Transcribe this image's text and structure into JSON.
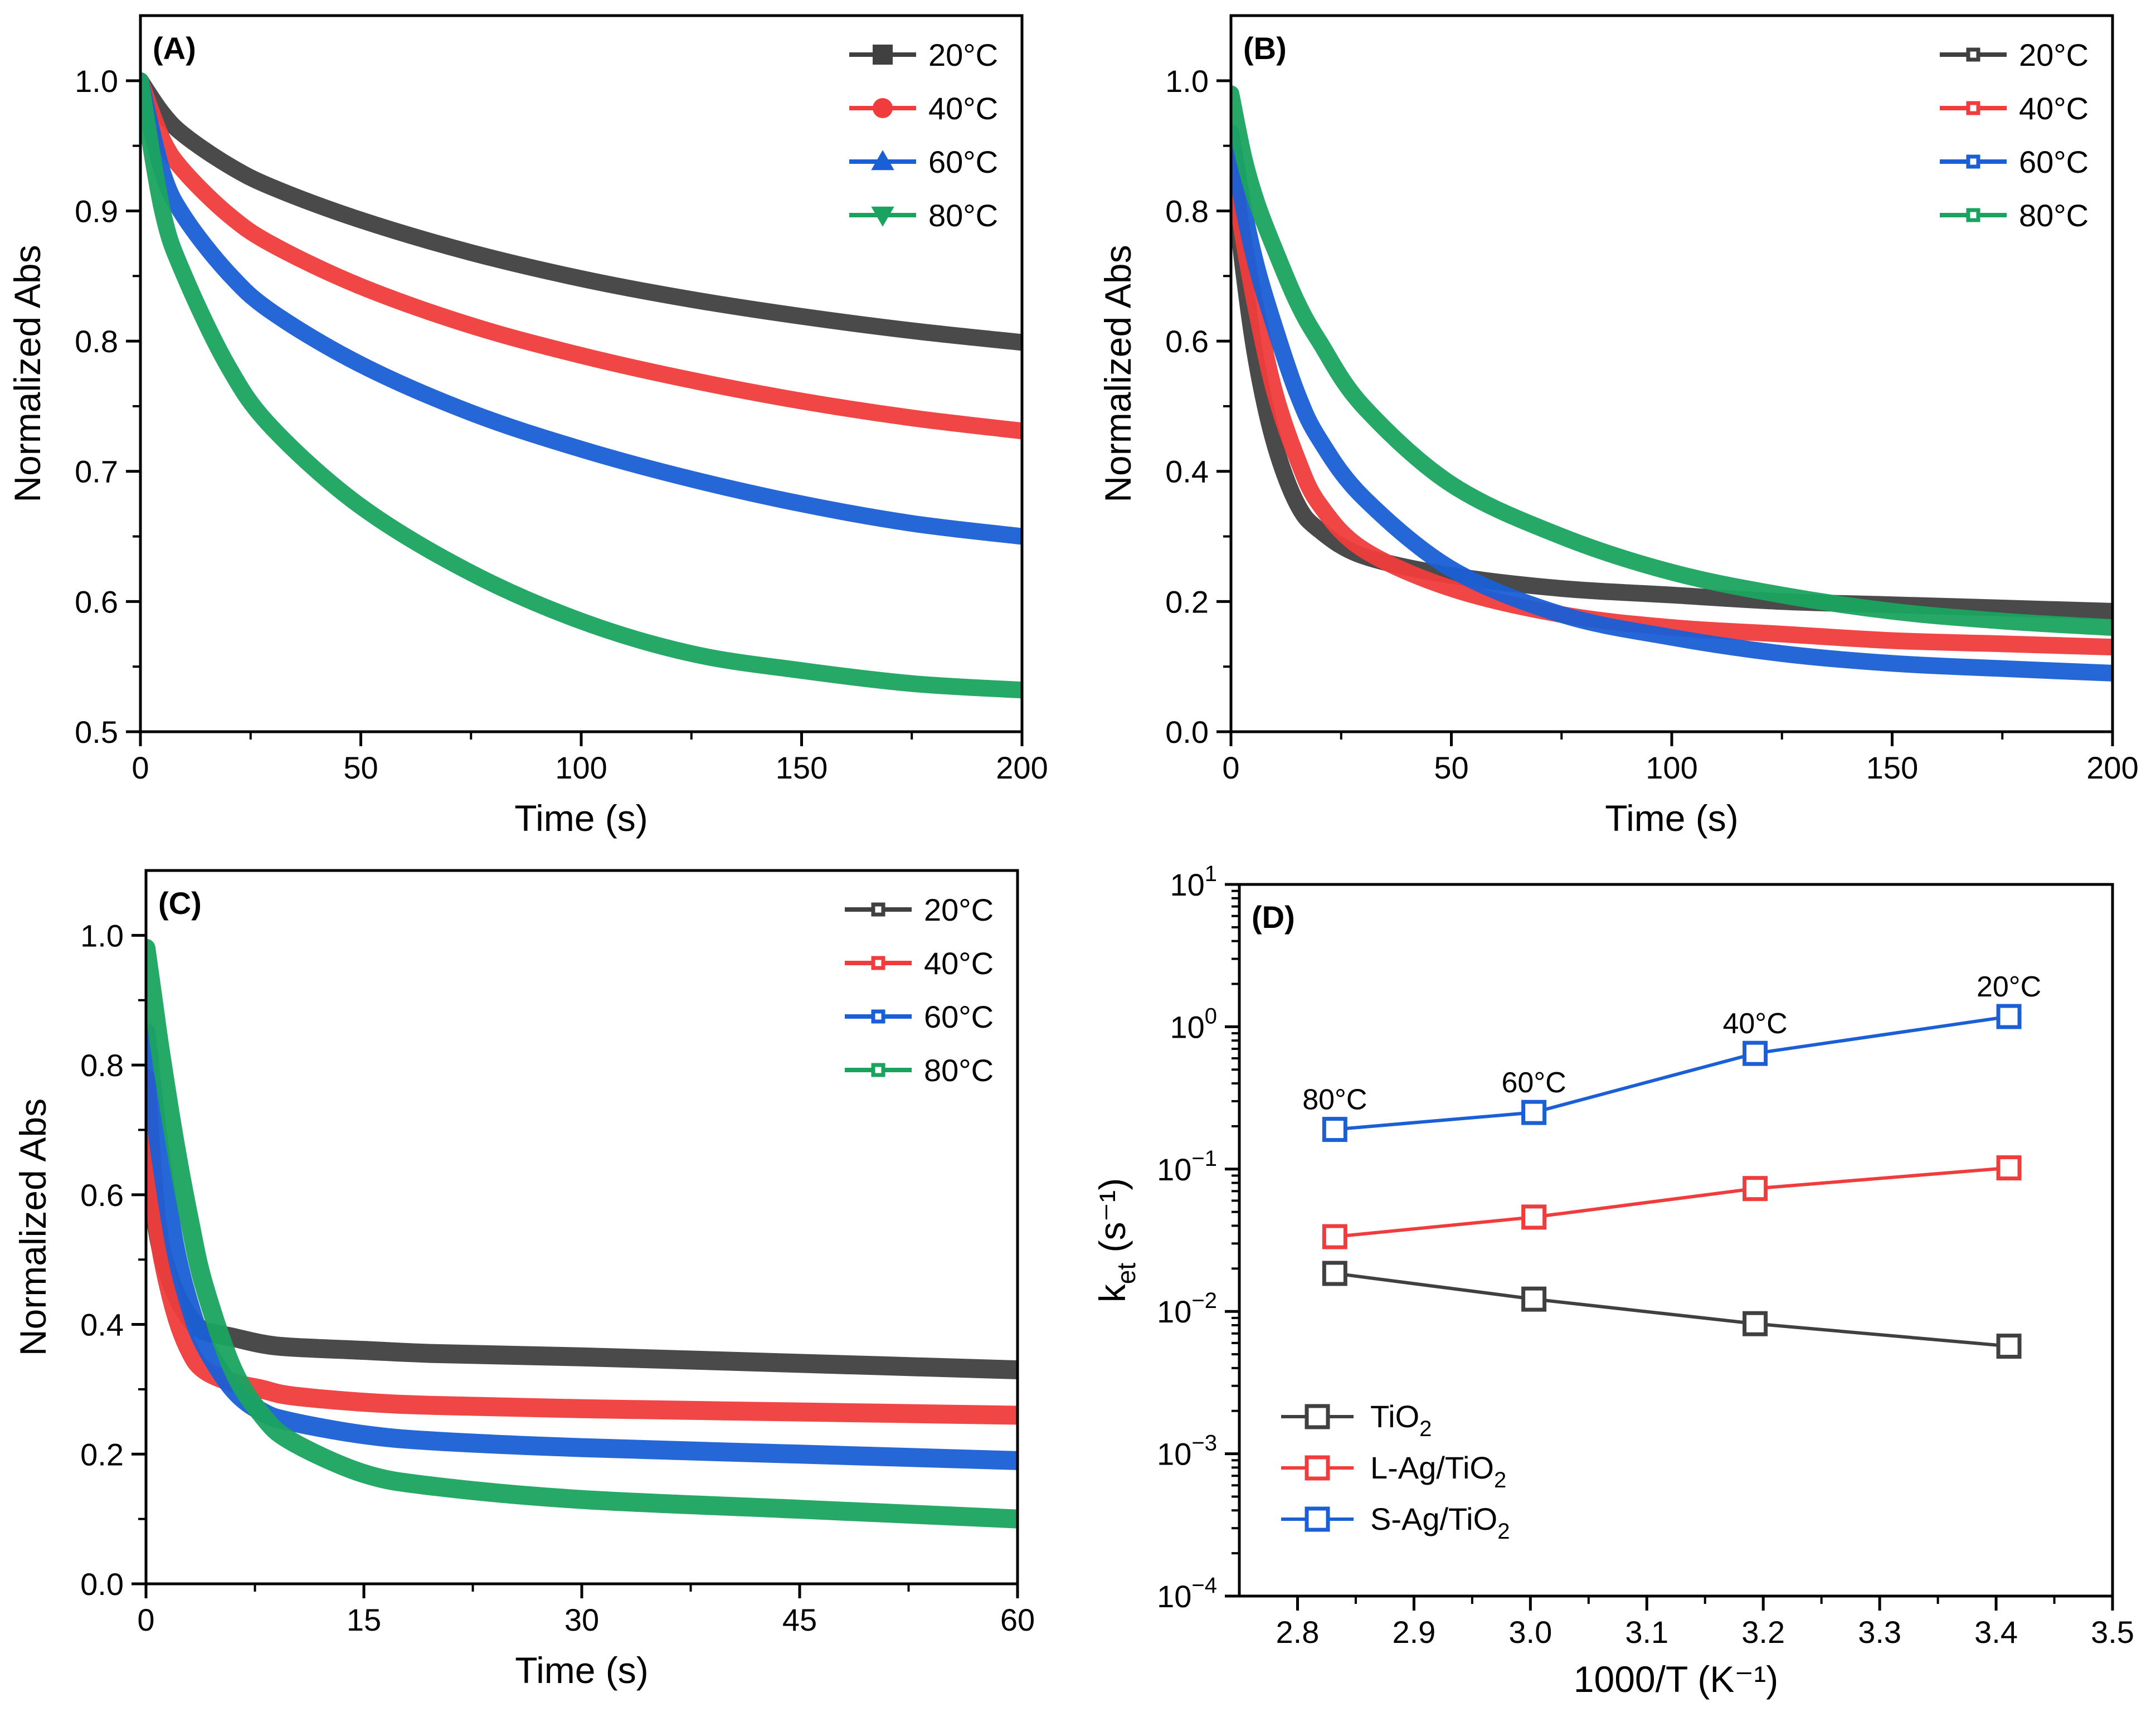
{
  "chart_data": [
    {
      "id": "A",
      "type": "line",
      "panel_label": "(A)",
      "xlabel": "Time (s)",
      "ylabel": "Normalized Abs",
      "xlim": [
        0,
        200
      ],
      "ylim": [
        0.5,
        1.05
      ],
      "x_ticks": [
        0,
        50,
        100,
        150,
        200
      ],
      "y_ticks": [
        0.5,
        0.6,
        0.7,
        0.8,
        0.9,
        1.0
      ],
      "x_tick_labels": [
        "0",
        "50",
        "100",
        "150",
        "200"
      ],
      "y_tick_labels": [
        "0.5",
        "0.6",
        "0.7",
        "0.8",
        "0.9",
        "1.0"
      ],
      "legend_position": "top-right",
      "legend_marker": "filled",
      "series": [
        {
          "name": "20°C",
          "color": "#404040",
          "marker": "square",
          "x": [
            0,
            5,
            10,
            20,
            30,
            50,
            75,
            100,
            125,
            150,
            175,
            200
          ],
          "values": [
            1.0,
            0.975,
            0.958,
            0.935,
            0.918,
            0.893,
            0.868,
            0.848,
            0.832,
            0.819,
            0.808,
            0.799
          ]
        },
        {
          "name": "40°C",
          "color": "#f03c3c",
          "marker": "circle",
          "x": [
            0,
            5,
            10,
            20,
            30,
            50,
            75,
            100,
            125,
            150,
            175,
            200
          ],
          "values": [
            1.0,
            0.955,
            0.93,
            0.897,
            0.874,
            0.842,
            0.812,
            0.789,
            0.77,
            0.754,
            0.741,
            0.731
          ]
        },
        {
          "name": "60°C",
          "color": "#1a5fd6",
          "marker": "triangle-up",
          "x": [
            0,
            5,
            10,
            20,
            30,
            50,
            75,
            100,
            125,
            150,
            175,
            200
          ],
          "values": [
            1.0,
            0.93,
            0.895,
            0.852,
            0.822,
            0.782,
            0.745,
            0.717,
            0.694,
            0.675,
            0.66,
            0.65
          ]
        },
        {
          "name": "80°C",
          "color": "#1aa35f",
          "marker": "triangle-down",
          "x": [
            0,
            5,
            10,
            20,
            30,
            50,
            75,
            100,
            125,
            150,
            175,
            200
          ],
          "values": [
            1.0,
            0.9,
            0.85,
            0.78,
            0.733,
            0.673,
            0.622,
            0.585,
            0.56,
            0.547,
            0.537,
            0.532
          ]
        }
      ]
    },
    {
      "id": "B",
      "type": "line",
      "panel_label": "(B)",
      "xlabel": "Time (s)",
      "ylabel": "Normalized Abs",
      "xlim": [
        0,
        200
      ],
      "ylim": [
        0.0,
        1.1
      ],
      "x_ticks": [
        0,
        50,
        100,
        150,
        200
      ],
      "y_ticks": [
        0.0,
        0.2,
        0.4,
        0.6,
        0.8,
        1.0
      ],
      "x_tick_labels": [
        "0",
        "50",
        "100",
        "150",
        "200"
      ],
      "y_tick_labels": [
        "0.0",
        "0.2",
        "0.4",
        "0.6",
        "0.8",
        "1.0"
      ],
      "legend_position": "top-right",
      "legend_marker": "open-square",
      "series": [
        {
          "name": "20°C",
          "color": "#404040",
          "x": [
            0,
            3,
            6,
            10,
            15,
            20,
            30,
            50,
            75,
            100,
            125,
            150,
            175,
            200
          ],
          "values": [
            0.88,
            0.7,
            0.56,
            0.44,
            0.35,
            0.31,
            0.27,
            0.24,
            0.22,
            0.21,
            0.2,
            0.195,
            0.19,
            0.185
          ]
        },
        {
          "name": "40°C",
          "color": "#f03c3c",
          "x": [
            0,
            3,
            6,
            10,
            15,
            20,
            30,
            50,
            75,
            100,
            125,
            150,
            175,
            200
          ],
          "values": [
            0.88,
            0.75,
            0.64,
            0.52,
            0.42,
            0.35,
            0.28,
            0.22,
            0.18,
            0.16,
            0.15,
            0.14,
            0.135,
            0.13
          ]
        },
        {
          "name": "60°C",
          "color": "#1a5fd6",
          "x": [
            0,
            3,
            6,
            10,
            15,
            20,
            30,
            50,
            75,
            100,
            125,
            150,
            175,
            200
          ],
          "values": [
            0.92,
            0.8,
            0.71,
            0.62,
            0.52,
            0.45,
            0.36,
            0.25,
            0.18,
            0.145,
            0.12,
            0.105,
            0.097,
            0.09
          ]
        },
        {
          "name": "80°C",
          "color": "#1aa35f",
          "x": [
            0,
            3,
            6,
            10,
            15,
            20,
            30,
            50,
            75,
            100,
            125,
            150,
            175,
            200
          ],
          "values": [
            0.98,
            0.88,
            0.81,
            0.74,
            0.66,
            0.6,
            0.5,
            0.38,
            0.3,
            0.245,
            0.21,
            0.185,
            0.17,
            0.16
          ]
        }
      ]
    },
    {
      "id": "C",
      "type": "line",
      "panel_label": "(C)",
      "xlabel": "Time (s)",
      "ylabel": "Normalized Abs",
      "xlim": [
        0,
        60
      ],
      "ylim": [
        0.0,
        1.1
      ],
      "x_ticks": [
        0,
        15,
        30,
        45,
        60
      ],
      "y_ticks": [
        0.0,
        0.2,
        0.4,
        0.6,
        0.8,
        1.0
      ],
      "x_tick_labels": [
        "0",
        "15",
        "30",
        "45",
        "60"
      ],
      "y_tick_labels": [
        "0.0",
        "0.2",
        "0.4",
        "0.6",
        "0.8",
        "1.0"
      ],
      "legend_position": "top-right",
      "legend_marker": "open-square",
      "series": [
        {
          "name": "20°C",
          "color": "#404040",
          "x": [
            0,
            0.5,
            1,
            2,
            3,
            4,
            6,
            8,
            10,
            15,
            20,
            30,
            45,
            60
          ],
          "values": [
            0.75,
            0.6,
            0.52,
            0.45,
            0.41,
            0.39,
            0.38,
            0.37,
            0.365,
            0.36,
            0.355,
            0.35,
            0.34,
            0.33
          ]
        },
        {
          "name": "40°C",
          "color": "#f03c3c",
          "x": [
            0,
            0.5,
            1,
            2,
            3,
            4,
            6,
            8,
            10,
            15,
            20,
            30,
            45,
            60
          ],
          "values": [
            0.78,
            0.62,
            0.52,
            0.42,
            0.36,
            0.33,
            0.31,
            0.3,
            0.29,
            0.28,
            0.275,
            0.27,
            0.265,
            0.26
          ]
        },
        {
          "name": "60°C",
          "color": "#1a5fd6",
          "x": [
            0,
            0.5,
            1,
            2,
            3,
            4,
            6,
            8,
            10,
            15,
            20,
            30,
            45,
            60
          ],
          "values": [
            0.85,
            0.75,
            0.66,
            0.52,
            0.43,
            0.37,
            0.3,
            0.265,
            0.25,
            0.23,
            0.22,
            0.21,
            0.2,
            0.19
          ]
        },
        {
          "name": "80°C",
          "color": "#1aa35f",
          "x": [
            0,
            0.5,
            1,
            2,
            3,
            4,
            6,
            8,
            10,
            15,
            20,
            30,
            45,
            60
          ],
          "values": [
            0.98,
            0.9,
            0.82,
            0.68,
            0.56,
            0.46,
            0.33,
            0.26,
            0.22,
            0.17,
            0.15,
            0.13,
            0.115,
            0.1
          ]
        }
      ]
    },
    {
      "id": "D",
      "type": "line",
      "panel_label": "(D)",
      "xlabel": "1000/T (K⁻¹)",
      "ylabel_main": "k",
      "ylabel_sub": "et",
      "ylabel_unit": " (s⁻¹)",
      "xlim": [
        2.75,
        3.5
      ],
      "ylim_log10": [
        -4,
        1
      ],
      "y_scale": "log",
      "x_ticks": [
        2.8,
        2.9,
        3.0,
        3.1,
        3.2,
        3.3,
        3.4,
        3.5
      ],
      "x_tick_labels": [
        "2.8",
        "2.9",
        "3.0",
        "3.1",
        "3.2",
        "3.3",
        "3.4",
        "3.5"
      ],
      "y_ticks_log10": [
        -4,
        -3,
        -2,
        -1,
        0,
        1
      ],
      "y_tick_base": "10",
      "y_tick_exps": [
        "−4",
        "−3",
        "−2",
        "−1",
        "0",
        "1"
      ],
      "legend_position": "bottom-left",
      "legend_marker": "open-square",
      "series": [
        {
          "name": "TiO",
          "name_sub": "2",
          "color": "#404040",
          "x": [
            2.832,
            3.003,
            3.193,
            3.411
          ],
          "values": [
            0.0185,
            0.0122,
            0.0082,
            0.0057
          ]
        },
        {
          "name": "L-Ag/TiO",
          "name_sub": "2",
          "color": "#f03c3c",
          "x": [
            2.832,
            3.003,
            3.193,
            3.411
          ],
          "values": [
            0.0335,
            0.046,
            0.073,
            0.102
          ]
        },
        {
          "name": "S-Ag/TiO",
          "name_sub": "2",
          "color": "#1a5fd6",
          "x": [
            2.832,
            3.003,
            3.193,
            3.411
          ],
          "values": [
            0.19,
            0.25,
            0.65,
            1.18
          ]
        }
      ],
      "annotations": [
        {
          "text": "80°C",
          "x": 2.832,
          "y": 0.19
        },
        {
          "text": "60°C",
          "x": 3.003,
          "y": 0.25
        },
        {
          "text": "40°C",
          "x": 3.193,
          "y": 0.65
        },
        {
          "text": "20°C",
          "x": 3.411,
          "y": 1.18
        }
      ]
    }
  ]
}
